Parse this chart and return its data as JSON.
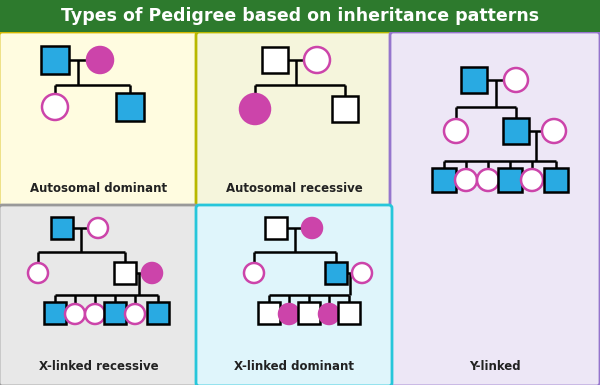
{
  "title": "Types of Pedigree based on inheritance patterns",
  "title_bg": "#2d7a2d",
  "title_color": "white",
  "bg_color": "#c8e6c9",
  "blue": "#29aae2",
  "purple": "#cc44aa",
  "white_fill": "white",
  "black": "black",
  "panel1": {
    "label": "Autosomal dominant",
    "bg": "#fffce0",
    "border": "#d4b800"
  },
  "panel2": {
    "label": "Autosomal recessive",
    "bg": "#f5f5dc",
    "border": "#b8b800"
  },
  "panel3": {
    "label": "Y-linked",
    "bg": "#ede7f6",
    "border": "#9575cd"
  },
  "panel4": {
    "label": "X-linked recessive",
    "bg": "#e8e8e8",
    "border": "#999999"
  },
  "panel5": {
    "label": "X-linked dominant",
    "bg": "#dff5fb",
    "border": "#26c6da"
  }
}
